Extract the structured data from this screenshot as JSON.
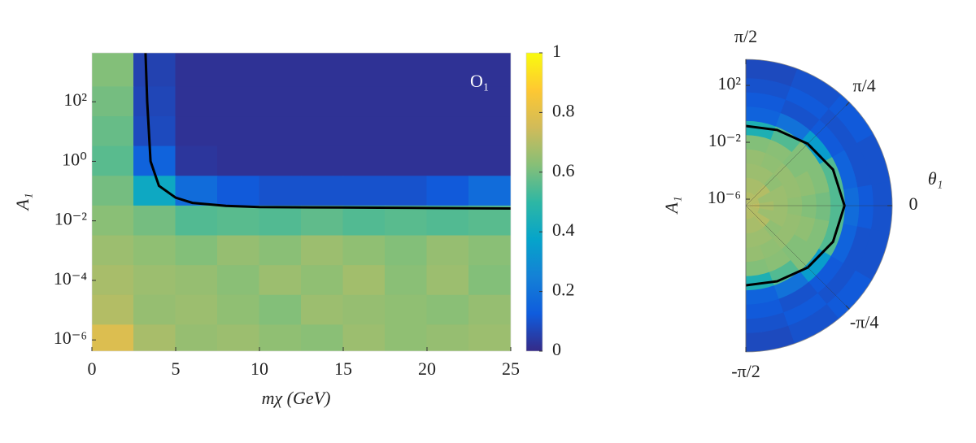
{
  "chart_data": [
    {
      "type": "heatmap",
      "xlabel": "mχ (GeV)",
      "ylabel": "A₁",
      "annotation": "O₁",
      "xlim": [
        0,
        25
      ],
      "xticks": [
        0,
        5,
        10,
        15,
        20,
        25
      ],
      "yscale": "log",
      "ylim": [
        4.2e-07,
        4400
      ],
      "yticks": [
        {
          "value": 1e-06,
          "label": "10⁻⁶"
        },
        {
          "value": 0.0001,
          "label": "10⁻⁴"
        },
        {
          "value": 0.01,
          "label": "10⁻²"
        },
        {
          "value": 1,
          "label": "10⁰"
        },
        {
          "value": 100,
          "label": "10²"
        }
      ],
      "clim": [
        0,
        1
      ],
      "cticks": [
        0,
        0.2,
        0.4,
        0.6,
        0.8,
        1
      ],
      "colormap": [
        "#352a87",
        "#0f5cdd",
        "#1481d6",
        "#06a4ca",
        "#2eb7a4",
        "#87bf77",
        "#d1bb59",
        "#fec832",
        "#f9fb0e"
      ],
      "x": [
        1.25,
        3.75,
        6.25,
        8.75,
        11.25,
        13.75,
        16.25,
        18.75,
        21.25,
        23.75
      ],
      "y": [
        1000,
        100,
        10,
        1,
        0.1,
        0.01,
        0.001,
        0.0001,
        1e-05,
        1e-06
      ],
      "z": [
        [
          0.62,
          0.06,
          0.02,
          0.02,
          0.02,
          0.02,
          0.02,
          0.02,
          0.02,
          0.02
        ],
        [
          0.6,
          0.07,
          0.02,
          0.02,
          0.02,
          0.02,
          0.02,
          0.02,
          0.02,
          0.02
        ],
        [
          0.58,
          0.08,
          0.02,
          0.02,
          0.02,
          0.02,
          0.02,
          0.02,
          0.02,
          0.02
        ],
        [
          0.56,
          0.15,
          0.03,
          0.02,
          0.02,
          0.02,
          0.02,
          0.02,
          0.02,
          0.02
        ],
        [
          0.6,
          0.4,
          0.18,
          0.12,
          0.1,
          0.1,
          0.1,
          0.1,
          0.12,
          0.18
        ],
        [
          0.63,
          0.6,
          0.55,
          0.56,
          0.55,
          0.57,
          0.55,
          0.56,
          0.55,
          0.56
        ],
        [
          0.66,
          0.64,
          0.62,
          0.65,
          0.63,
          0.66,
          0.64,
          0.62,
          0.65,
          0.63
        ],
        [
          0.68,
          0.66,
          0.65,
          0.63,
          0.66,
          0.64,
          0.67,
          0.63,
          0.66,
          0.62
        ],
        [
          0.7,
          0.65,
          0.66,
          0.64,
          0.62,
          0.66,
          0.65,
          0.64,
          0.63,
          0.65
        ],
        [
          0.78,
          0.68,
          0.65,
          0.66,
          0.64,
          0.63,
          0.66,
          0.64,
          0.65,
          0.66
        ]
      ],
      "contour": {
        "color": "#000000",
        "x": [
          3.2,
          3.3,
          3.5,
          4.0,
          5,
          6,
          8,
          10,
          15,
          20,
          25
        ],
        "y": [
          4400,
          100,
          1,
          0.15,
          0.06,
          0.04,
          0.032,
          0.029,
          0.028,
          0.027,
          0.026
        ]
      }
    },
    {
      "type": "polar-heatmap",
      "ylabel": "A₁",
      "thetalabel": "θ₁",
      "rscale": "log",
      "rlim": [
        3.5e-07,
        6800
      ],
      "rticks": [
        {
          "value": 1e-06,
          "label": "10⁻⁶"
        },
        {
          "value": 0.01,
          "label": "10⁻²"
        },
        {
          "value": 100,
          "label": "10²"
        }
      ],
      "thetalim": [
        -1.5708,
        1.5708
      ],
      "thetaticks": [
        {
          "value": -1.5708,
          "label": "-π/2"
        },
        {
          "value": -0.7854,
          "label": "-π/4"
        },
        0,
        {
          "value": 0.7854,
          "label": "π/4"
        },
        {
          "value": 1.5708,
          "label": "π/2"
        }
      ],
      "theta": [
        -1.3963,
        -1.0472,
        -0.6981,
        -0.3491,
        0,
        0.3491,
        0.6981,
        1.0472,
        1.3963
      ],
      "r": [
        1e-06,
        1e-05,
        0.0001,
        0.001,
        0.01,
        0.1,
        1,
        10,
        100,
        1000
      ],
      "z": [
        [
          0.7,
          0.7,
          0.7,
          0.7,
          0.72,
          0.7,
          0.7,
          0.7,
          0.7
        ],
        [
          0.68,
          0.68,
          0.7,
          0.66,
          0.68,
          0.66,
          0.7,
          0.68,
          0.68
        ],
        [
          0.66,
          0.66,
          0.64,
          0.66,
          0.66,
          0.66,
          0.64,
          0.66,
          0.66
        ],
        [
          0.65,
          0.64,
          0.65,
          0.65,
          0.64,
          0.65,
          0.65,
          0.64,
          0.65
        ],
        [
          0.62,
          0.63,
          0.62,
          0.64,
          0.62,
          0.64,
          0.62,
          0.63,
          0.62
        ],
        [
          0.45,
          0.55,
          0.62,
          0.62,
          0.6,
          0.62,
          0.62,
          0.55,
          0.45
        ],
        [
          0.15,
          0.2,
          0.35,
          0.55,
          0.55,
          0.55,
          0.35,
          0.2,
          0.15
        ],
        [
          0.12,
          0.1,
          0.12,
          0.15,
          0.18,
          0.15,
          0.12,
          0.1,
          0.12
        ],
        [
          0.1,
          0.12,
          0.1,
          0.1,
          0.12,
          0.1,
          0.1,
          0.12,
          0.1
        ],
        [
          0.08,
          0.1,
          0.12,
          0.1,
          0.1,
          0.1,
          0.12,
          0.1,
          0.08
        ]
      ],
      "contour": {
        "color": "#000000",
        "theta": [
          -1.5708,
          -1.1781,
          -0.7854,
          -0.3927,
          0,
          0.3927,
          0.7854,
          1.1781,
          1.5708
        ],
        "r": [
          0.14,
          0.2,
          0.5,
          1.5,
          3,
          1.5,
          0.5,
          0.2,
          0.14
        ]
      }
    }
  ]
}
